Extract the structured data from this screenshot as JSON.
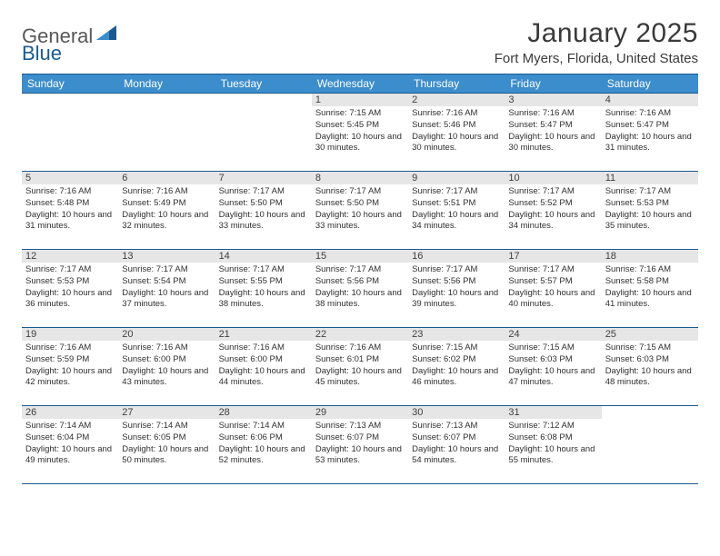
{
  "brand": {
    "name1": "General",
    "name2": "Blue"
  },
  "title": "January 2025",
  "location": "Fort Myers, Florida, United States",
  "colors": {
    "header_bg": "#3c8dcc",
    "header_border": "#1b5a8f",
    "daynum_bg": "#e6e6e6",
    "logo_dark": "#1b5a8f",
    "logo_light": "#3c8dcc"
  },
  "dayNames": [
    "Sunday",
    "Monday",
    "Tuesday",
    "Wednesday",
    "Thursday",
    "Friday",
    "Saturday"
  ],
  "weeks": [
    [
      null,
      null,
      null,
      {
        "n": "1",
        "sr": "7:15 AM",
        "ss": "5:45 PM",
        "dl": "10 hours and 30 minutes."
      },
      {
        "n": "2",
        "sr": "7:16 AM",
        "ss": "5:46 PM",
        "dl": "10 hours and 30 minutes."
      },
      {
        "n": "3",
        "sr": "7:16 AM",
        "ss": "5:47 PM",
        "dl": "10 hours and 30 minutes."
      },
      {
        "n": "4",
        "sr": "7:16 AM",
        "ss": "5:47 PM",
        "dl": "10 hours and 31 minutes."
      }
    ],
    [
      {
        "n": "5",
        "sr": "7:16 AM",
        "ss": "5:48 PM",
        "dl": "10 hours and 31 minutes."
      },
      {
        "n": "6",
        "sr": "7:16 AM",
        "ss": "5:49 PM",
        "dl": "10 hours and 32 minutes."
      },
      {
        "n": "7",
        "sr": "7:17 AM",
        "ss": "5:50 PM",
        "dl": "10 hours and 33 minutes."
      },
      {
        "n": "8",
        "sr": "7:17 AM",
        "ss": "5:50 PM",
        "dl": "10 hours and 33 minutes."
      },
      {
        "n": "9",
        "sr": "7:17 AM",
        "ss": "5:51 PM",
        "dl": "10 hours and 34 minutes."
      },
      {
        "n": "10",
        "sr": "7:17 AM",
        "ss": "5:52 PM",
        "dl": "10 hours and 34 minutes."
      },
      {
        "n": "11",
        "sr": "7:17 AM",
        "ss": "5:53 PM",
        "dl": "10 hours and 35 minutes."
      }
    ],
    [
      {
        "n": "12",
        "sr": "7:17 AM",
        "ss": "5:53 PM",
        "dl": "10 hours and 36 minutes."
      },
      {
        "n": "13",
        "sr": "7:17 AM",
        "ss": "5:54 PM",
        "dl": "10 hours and 37 minutes."
      },
      {
        "n": "14",
        "sr": "7:17 AM",
        "ss": "5:55 PM",
        "dl": "10 hours and 38 minutes."
      },
      {
        "n": "15",
        "sr": "7:17 AM",
        "ss": "5:56 PM",
        "dl": "10 hours and 38 minutes."
      },
      {
        "n": "16",
        "sr": "7:17 AM",
        "ss": "5:56 PM",
        "dl": "10 hours and 39 minutes."
      },
      {
        "n": "17",
        "sr": "7:17 AM",
        "ss": "5:57 PM",
        "dl": "10 hours and 40 minutes."
      },
      {
        "n": "18",
        "sr": "7:16 AM",
        "ss": "5:58 PM",
        "dl": "10 hours and 41 minutes."
      }
    ],
    [
      {
        "n": "19",
        "sr": "7:16 AM",
        "ss": "5:59 PM",
        "dl": "10 hours and 42 minutes."
      },
      {
        "n": "20",
        "sr": "7:16 AM",
        "ss": "6:00 PM",
        "dl": "10 hours and 43 minutes."
      },
      {
        "n": "21",
        "sr": "7:16 AM",
        "ss": "6:00 PM",
        "dl": "10 hours and 44 minutes."
      },
      {
        "n": "22",
        "sr": "7:16 AM",
        "ss": "6:01 PM",
        "dl": "10 hours and 45 minutes."
      },
      {
        "n": "23",
        "sr": "7:15 AM",
        "ss": "6:02 PM",
        "dl": "10 hours and 46 minutes."
      },
      {
        "n": "24",
        "sr": "7:15 AM",
        "ss": "6:03 PM",
        "dl": "10 hours and 47 minutes."
      },
      {
        "n": "25",
        "sr": "7:15 AM",
        "ss": "6:03 PM",
        "dl": "10 hours and 48 minutes."
      }
    ],
    [
      {
        "n": "26",
        "sr": "7:14 AM",
        "ss": "6:04 PM",
        "dl": "10 hours and 49 minutes."
      },
      {
        "n": "27",
        "sr": "7:14 AM",
        "ss": "6:05 PM",
        "dl": "10 hours and 50 minutes."
      },
      {
        "n": "28",
        "sr": "7:14 AM",
        "ss": "6:06 PM",
        "dl": "10 hours and 52 minutes."
      },
      {
        "n": "29",
        "sr": "7:13 AM",
        "ss": "6:07 PM",
        "dl": "10 hours and 53 minutes."
      },
      {
        "n": "30",
        "sr": "7:13 AM",
        "ss": "6:07 PM",
        "dl": "10 hours and 54 minutes."
      },
      {
        "n": "31",
        "sr": "7:12 AM",
        "ss": "6:08 PM",
        "dl": "10 hours and 55 minutes."
      },
      null
    ]
  ],
  "labels": {
    "sunrise": "Sunrise: ",
    "sunset": "Sunset: ",
    "daylight": "Daylight: "
  }
}
